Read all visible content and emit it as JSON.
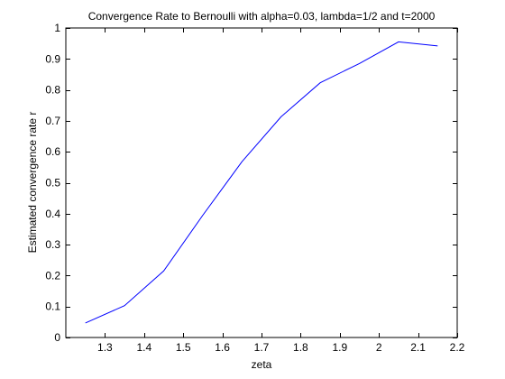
{
  "chart_data": {
    "type": "line",
    "title": "Convergence Rate to Bernoulli with alpha=0.03, lambda=1/2 and t=2000",
    "xlabel": "zeta",
    "ylabel": "Estimated convergence rate r",
    "xlim": [
      1.2,
      2.2
    ],
    "ylim": [
      0,
      1
    ],
    "xticks": [
      1.3,
      1.4,
      1.5,
      1.6,
      1.7,
      1.8,
      1.9,
      2.0,
      2.1,
      2.2
    ],
    "xtick_labels": [
      "1.3",
      "1.4",
      "1.5",
      "1.6",
      "1.7",
      "1.8",
      "1.9",
      "2",
      "2.1",
      "2.2"
    ],
    "yticks": [
      0,
      0.1,
      0.2,
      0.3,
      0.4,
      0.5,
      0.6,
      0.7,
      0.8,
      0.9,
      1
    ],
    "ytick_labels": [
      "0",
      "0.1",
      "0.2",
      "0.3",
      "0.4",
      "0.5",
      "0.6",
      "0.7",
      "0.8",
      "0.9",
      "1"
    ],
    "grid": false,
    "legend": "none",
    "series": [
      {
        "color": "#0000ff",
        "x": [
          1.25,
          1.35,
          1.45,
          1.55,
          1.65,
          1.75,
          1.85,
          1.95,
          2.05,
          2.15
        ],
        "y": [
          0.047,
          0.103,
          0.215,
          0.395,
          0.568,
          0.713,
          0.823,
          0.885,
          0.955,
          0.942
        ]
      }
    ]
  }
}
